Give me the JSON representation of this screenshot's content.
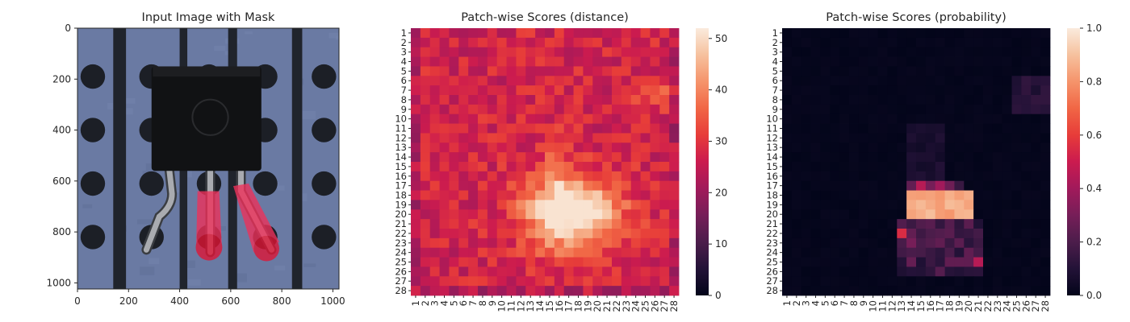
{
  "chart_data": [
    {
      "type": "image",
      "title": "Input Image with Mask",
      "x_ticks": [
        "0",
        "200",
        "400",
        "600",
        "800",
        "1000"
      ],
      "y_ticks": [
        "0",
        "200",
        "400",
        "600",
        "800",
        "1000"
      ],
      "xlim": [
        0,
        1024
      ],
      "ylim": [
        1024,
        0
      ],
      "image_content": {
        "background": "blue perforated board with dark vertical stripes and round holes",
        "object": "black TO-92 transistor with three metal legs",
        "mask": "red semi-transparent mask over the two right legs"
      }
    },
    {
      "type": "heatmap",
      "title": "Patch-wise Scores (distance)",
      "rows": 28,
      "cols": 28,
      "tick_labels": [
        "1",
        "2",
        "3",
        "4",
        "5",
        "6",
        "7",
        "8",
        "9",
        "10",
        "11",
        "12",
        "13",
        "14",
        "15",
        "16",
        "17",
        "18",
        "19",
        "20",
        "21",
        "22",
        "23",
        "24",
        "25",
        "26",
        "27",
        "28"
      ],
      "colorbar_ticks": [
        "0",
        "10",
        "20",
        "30",
        "40",
        "50"
      ],
      "vmin": 0,
      "vmax": 52,
      "colormap": "rocket",
      "hotspot": {
        "center_row": 19.5,
        "center_col": 17,
        "peak": 50
      },
      "background_level": "approximately 25-33"
    },
    {
      "type": "heatmap",
      "title": "Patch-wise Scores (probability)",
      "rows": 28,
      "cols": 28,
      "tick_labels": [
        "1",
        "2",
        "3",
        "4",
        "5",
        "6",
        "7",
        "8",
        "9",
        "10",
        "11",
        "12",
        "13",
        "14",
        "15",
        "16",
        "17",
        "18",
        "19",
        "20",
        "21",
        "22",
        "23",
        "24",
        "25",
        "26",
        "27",
        "28"
      ],
      "colorbar_ticks": [
        "0.0",
        "0.2",
        "0.4",
        "0.6",
        "0.8",
        "1.0"
      ],
      "vmin": 0,
      "vmax": 1,
      "colormap": "rocket",
      "high_region": {
        "rows": [
          18,
          20
        ],
        "cols": [
          14,
          20
        ],
        "value": 0.85
      },
      "background_level": "approximately 0"
    }
  ]
}
